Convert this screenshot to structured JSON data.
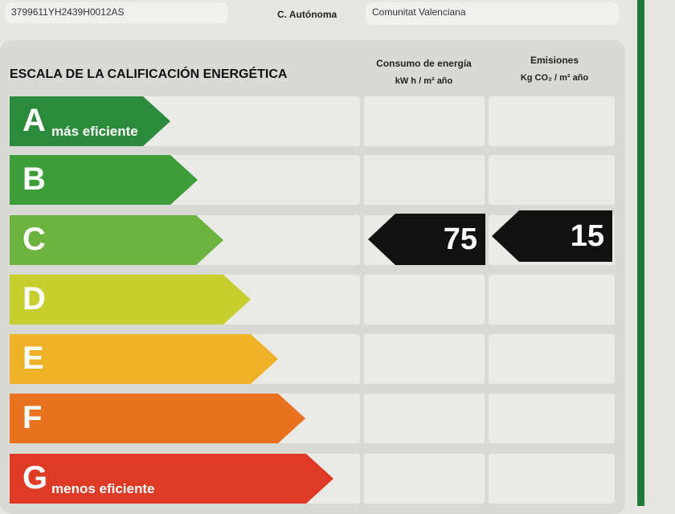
{
  "header": {
    "reference": "3799611YH2439H0012AS",
    "region_label": "C. Autónoma",
    "region_value": "Comunitat Valenciana"
  },
  "scale": {
    "title": "ESCALA DE LA CALIFICACIÓN ENERGÉTICA",
    "consumption_header": "Consumo de energía",
    "consumption_unit": "kW h / m² año",
    "emissions_header": "Emisiones",
    "emissions_unit": "Kg CO₂ / m² año",
    "classes": [
      {
        "letter": "A",
        "label": "más eficiente",
        "color": "#2c8a3c"
      },
      {
        "letter": "B",
        "label": "",
        "color": "#3d9d38"
      },
      {
        "letter": "C",
        "label": "",
        "color": "#6bb23e"
      },
      {
        "letter": "D",
        "label": "",
        "color": "#c6cf2d"
      },
      {
        "letter": "E",
        "label": "",
        "color": "#efb127"
      },
      {
        "letter": "F",
        "label": "",
        "color": "#e8721f"
      },
      {
        "letter": "G",
        "label": "menos eficiente",
        "color": "#df3a26"
      }
    ],
    "rating_class": "C",
    "consumption_value": "75",
    "emissions_value": "15"
  },
  "accent": "#1f7a3c"
}
